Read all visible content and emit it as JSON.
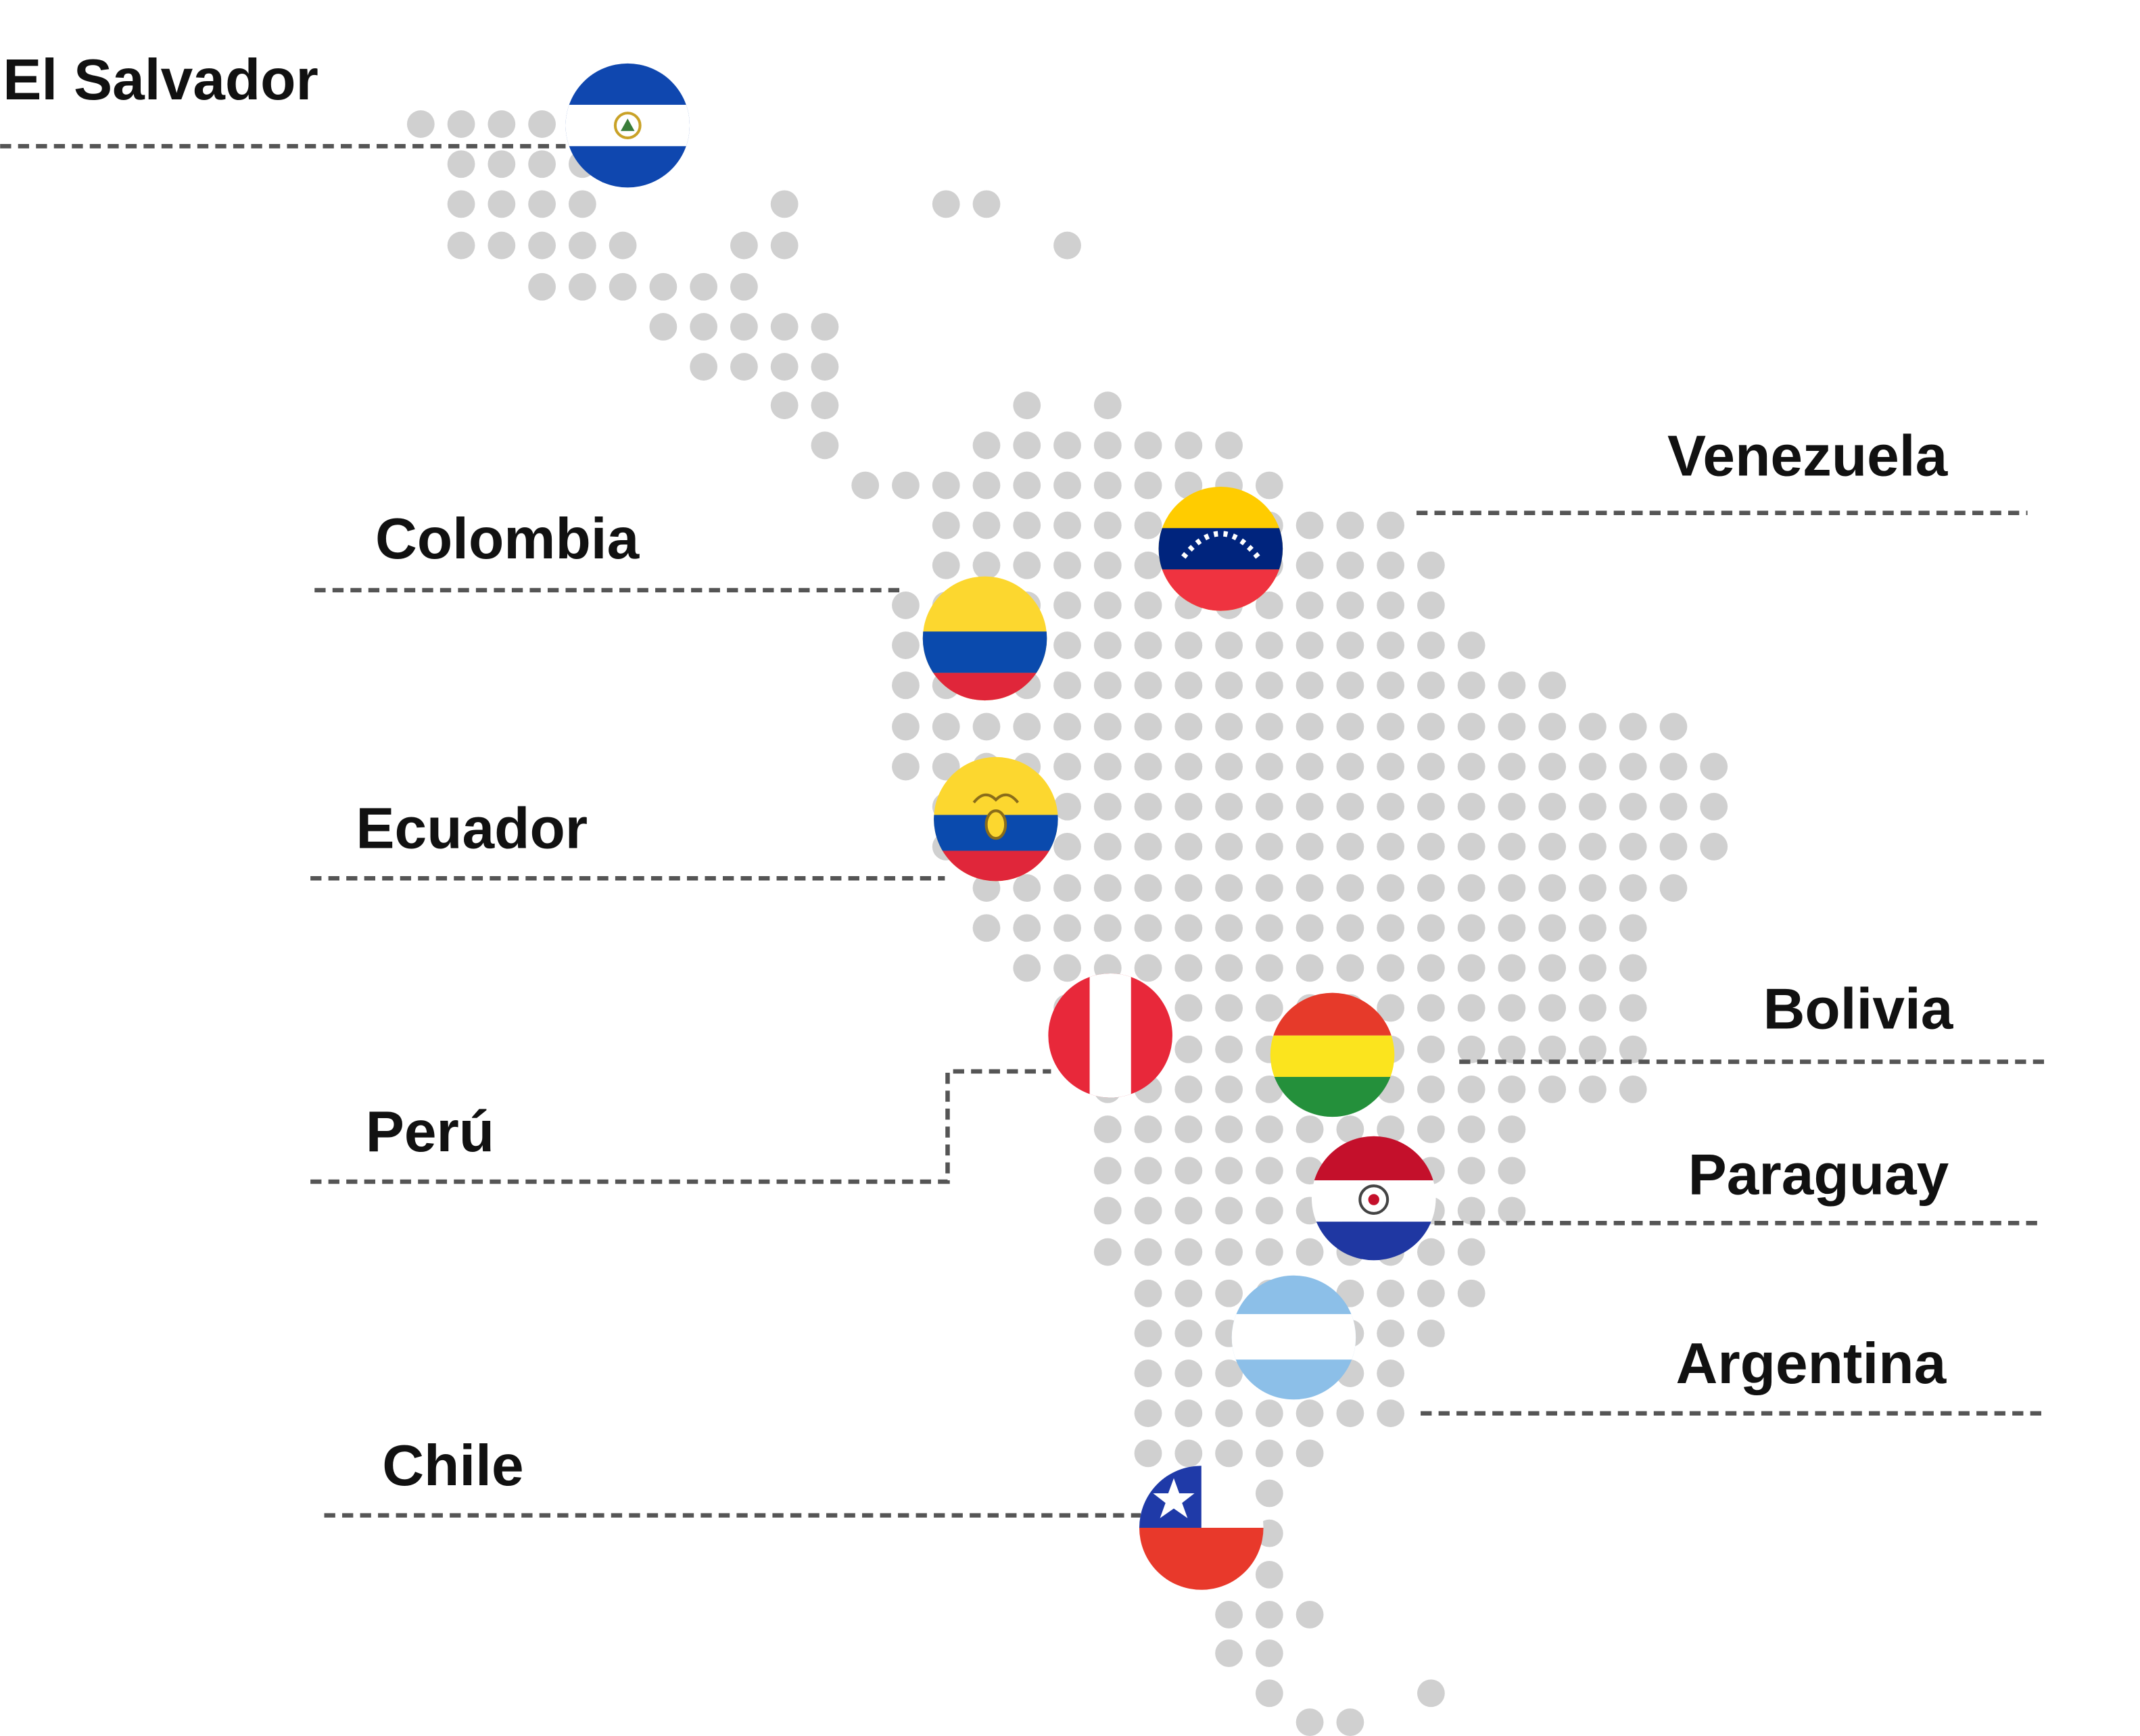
{
  "countries": [
    {
      "name": "El Salvador"
    },
    {
      "name": "Venezuela"
    },
    {
      "name": "Colombia"
    },
    {
      "name": "Ecuador"
    },
    {
      "name": "Bolivia"
    },
    {
      "name": "Perú"
    },
    {
      "name": "Paraguay"
    },
    {
      "name": "Argentina"
    },
    {
      "name": "Chile"
    }
  ]
}
